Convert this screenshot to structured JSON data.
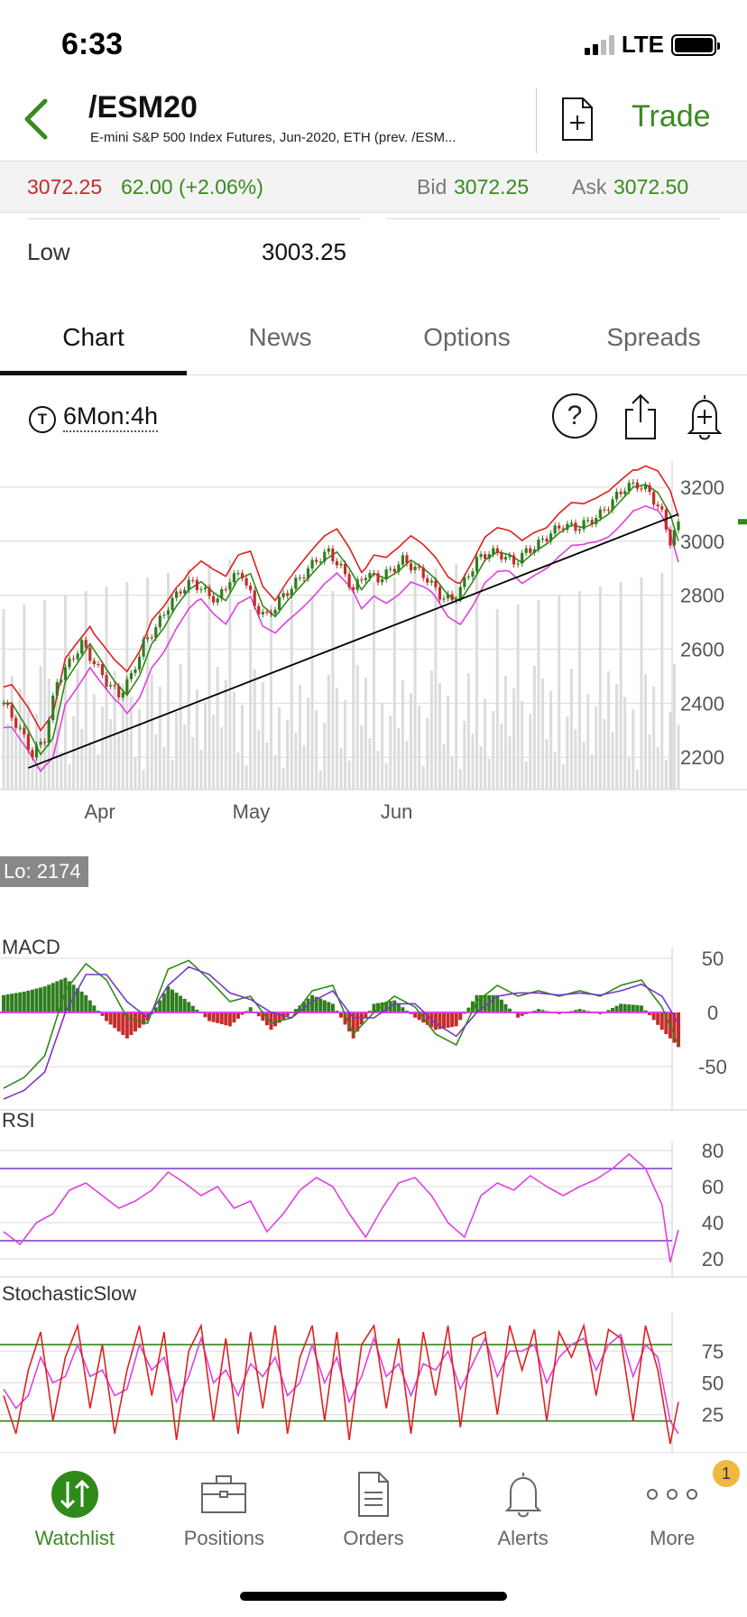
{
  "status": {
    "time": "6:33",
    "network": "LTE"
  },
  "header": {
    "symbol": "/ESM20",
    "description": "E-mini S&P 500 Index Futures, Jun-2020, ETH (prev. /ESM...",
    "trade_label": "Trade"
  },
  "quote": {
    "last": "3072.25",
    "change": "62.00 (+2.06%)",
    "bid_label": "Bid",
    "bid": "3072.25",
    "ask_label": "Ask",
    "ask": "3072.50"
  },
  "stats": {
    "low_label": "Low",
    "low_value": "3003.25"
  },
  "tabs": [
    {
      "label": "Chart",
      "active": true
    },
    {
      "label": "News",
      "active": false
    },
    {
      "label": "Options",
      "active": false
    },
    {
      "label": "Spreads",
      "active": false
    }
  ],
  "chart_toolbar": {
    "clock_glyph": "T",
    "period": "6Mon:4h",
    "help_glyph": "?"
  },
  "chart_data": [
    {
      "type": "candlestick",
      "x_tick_labels": [
        "Apr",
        "May",
        "Jun"
      ],
      "y_tick_labels": [
        "3200",
        "3000",
        "2800",
        "2600",
        "2400",
        "2200"
      ],
      "ylim": [
        2080,
        3300
      ],
      "low_annotation": "Lo: 2174",
      "overlays": [
        "upper band",
        "middle band",
        "lower band",
        "trendline",
        "volume"
      ],
      "colors": {
        "up": "#2f7d1e",
        "down": "#c62b2b",
        "upper": "#e02020",
        "middle": "#2f8a1a",
        "lower": "#e040e0",
        "trend": "#000000",
        "volume": "#dcdcdc"
      },
      "close_path": [
        [
          0,
          2400
        ],
        [
          4,
          2300
        ],
        [
          7,
          2210
        ],
        [
          10,
          2270
        ],
        [
          13,
          2480
        ],
        [
          16,
          2550
        ],
        [
          19,
          2620
        ],
        [
          22,
          2550
        ],
        [
          25,
          2480
        ],
        [
          28,
          2430
        ],
        [
          31,
          2500
        ],
        [
          34,
          2620
        ],
        [
          37,
          2680
        ],
        [
          40,
          2760
        ],
        [
          43,
          2820
        ],
        [
          46,
          2850
        ],
        [
          49,
          2810
        ],
        [
          52,
          2780
        ],
        [
          55,
          2860
        ],
        [
          58,
          2880
        ],
        [
          61,
          2760
        ],
        [
          64,
          2720
        ],
        [
          67,
          2780
        ],
        [
          70,
          2830
        ],
        [
          73,
          2880
        ],
        [
          76,
          2930
        ],
        [
          79,
          2960
        ],
        [
          82,
          2900
        ],
        [
          85,
          2820
        ],
        [
          88,
          2880
        ],
        [
          91,
          2860
        ],
        [
          94,
          2890
        ],
        [
          97,
          2930
        ],
        [
          100,
          2900
        ],
        [
          103,
          2860
        ],
        [
          106,
          2800
        ],
        [
          109,
          2780
        ],
        [
          112,
          2850
        ],
        [
          115,
          2930
        ],
        [
          118,
          2960
        ],
        [
          121,
          2950
        ],
        [
          124,
          2920
        ],
        [
          127,
          2960
        ],
        [
          130,
          2990
        ],
        [
          133,
          3030
        ],
        [
          136,
          3060
        ],
        [
          139,
          3050
        ],
        [
          142,
          3070
        ],
        [
          145,
          3100
        ],
        [
          148,
          3150
        ],
        [
          151,
          3200
        ],
        [
          154,
          3210
        ],
        [
          157,
          3180
        ],
        [
          160,
          3100
        ],
        [
          162,
          3000
        ],
        [
          164,
          3060
        ]
      ]
    },
    {
      "type": "line",
      "title": "MACD",
      "y_tick_labels": [
        "50",
        "0",
        "-50"
      ],
      "ylim": [
        -90,
        60
      ],
      "colors": {
        "macd": "#2f8a1a",
        "signal": "#7a36c8",
        "hist_up": "#2f7d1e",
        "hist_down": "#c62b2b",
        "zero": "#e040e0"
      },
      "macd": [
        [
          0,
          -70
        ],
        [
          5,
          -60
        ],
        [
          10,
          -40
        ],
        [
          15,
          20
        ],
        [
          20,
          45
        ],
        [
          25,
          30
        ],
        [
          30,
          -5
        ],
        [
          35,
          -10
        ],
        [
          40,
          40
        ],
        [
          45,
          48
        ],
        [
          50,
          30
        ],
        [
          55,
          10
        ],
        [
          60,
          15
        ],
        [
          65,
          -10
        ],
        [
          70,
          -5
        ],
        [
          75,
          20
        ],
        [
          80,
          25
        ],
        [
          85,
          -20
        ],
        [
          90,
          0
        ],
        [
          95,
          15
        ],
        [
          100,
          5
        ],
        [
          105,
          -20
        ],
        [
          110,
          -30
        ],
        [
          115,
          10
        ],
        [
          120,
          25
        ],
        [
          125,
          15
        ],
        [
          130,
          20
        ],
        [
          135,
          15
        ],
        [
          140,
          20
        ],
        [
          145,
          15
        ],
        [
          150,
          25
        ],
        [
          155,
          30
        ],
        [
          160,
          5
        ],
        [
          164,
          -30
        ]
      ],
      "signal": [
        [
          0,
          -80
        ],
        [
          5,
          -72
        ],
        [
          10,
          -55
        ],
        [
          15,
          0
        ],
        [
          20,
          35
        ],
        [
          25,
          35
        ],
        [
          30,
          10
        ],
        [
          35,
          -5
        ],
        [
          40,
          25
        ],
        [
          45,
          42
        ],
        [
          50,
          35
        ],
        [
          55,
          18
        ],
        [
          60,
          12
        ],
        [
          65,
          0
        ],
        [
          70,
          -5
        ],
        [
          75,
          10
        ],
        [
          80,
          20
        ],
        [
          85,
          -5
        ],
        [
          90,
          -5
        ],
        [
          95,
          8
        ],
        [
          100,
          8
        ],
        [
          105,
          -10
        ],
        [
          110,
          -22
        ],
        [
          115,
          0
        ],
        [
          120,
          15
        ],
        [
          125,
          18
        ],
        [
          130,
          18
        ],
        [
          135,
          16
        ],
        [
          140,
          18
        ],
        [
          145,
          16
        ],
        [
          150,
          20
        ],
        [
          155,
          26
        ],
        [
          160,
          15
        ],
        [
          164,
          -10
        ]
      ]
    },
    {
      "type": "line",
      "title": "RSI",
      "y_tick_labels": [
        "80",
        "60",
        "40",
        "20"
      ],
      "ylim": [
        10,
        85
      ],
      "levels": [
        70,
        30
      ],
      "colors": {
        "rsi": "#e040e0",
        "levels": "#7a36c8"
      },
      "rsi": [
        [
          0,
          35
        ],
        [
          4,
          28
        ],
        [
          8,
          40
        ],
        [
          12,
          45
        ],
        [
          16,
          58
        ],
        [
          20,
          62
        ],
        [
          24,
          55
        ],
        [
          28,
          48
        ],
        [
          32,
          52
        ],
        [
          36,
          58
        ],
        [
          40,
          68
        ],
        [
          44,
          62
        ],
        [
          48,
          55
        ],
        [
          52,
          60
        ],
        [
          56,
          48
        ],
        [
          60,
          52
        ],
        [
          64,
          35
        ],
        [
          68,
          45
        ],
        [
          72,
          58
        ],
        [
          76,
          65
        ],
        [
          80,
          60
        ],
        [
          84,
          45
        ],
        [
          88,
          32
        ],
        [
          92,
          48
        ],
        [
          96,
          62
        ],
        [
          100,
          65
        ],
        [
          104,
          55
        ],
        [
          108,
          40
        ],
        [
          112,
          32
        ],
        [
          116,
          55
        ],
        [
          120,
          62
        ],
        [
          124,
          58
        ],
        [
          128,
          66
        ],
        [
          132,
          60
        ],
        [
          136,
          55
        ],
        [
          140,
          60
        ],
        [
          144,
          64
        ],
        [
          148,
          70
        ],
        [
          152,
          78
        ],
        [
          156,
          70
        ],
        [
          160,
          50
        ],
        [
          162,
          18
        ],
        [
          164,
          36
        ]
      ]
    },
    {
      "type": "line",
      "title": "StochasticSlow",
      "y_tick_labels": [
        "75",
        "50",
        "25"
      ],
      "ylim": [
        -5,
        105
      ],
      "levels": [
        80,
        20
      ],
      "colors": {
        "k": "#e02020",
        "d": "#e040e0",
        "levels": "#2f8a1a"
      },
      "k": [
        [
          0,
          40
        ],
        [
          3,
          10
        ],
        [
          6,
          60
        ],
        [
          9,
          90
        ],
        [
          12,
          20
        ],
        [
          15,
          70
        ],
        [
          18,
          95
        ],
        [
          21,
          30
        ],
        [
          24,
          80
        ],
        [
          27,
          10
        ],
        [
          30,
          60
        ],
        [
          33,
          95
        ],
        [
          36,
          40
        ],
        [
          39,
          90
        ],
        [
          42,
          5
        ],
        [
          45,
          75
        ],
        [
          48,
          95
        ],
        [
          51,
          20
        ],
        [
          54,
          85
        ],
        [
          57,
          10
        ],
        [
          60,
          90
        ],
        [
          63,
          30
        ],
        [
          66,
          95
        ],
        [
          69,
          10
        ],
        [
          72,
          70
        ],
        [
          75,
          95
        ],
        [
          78,
          20
        ],
        [
          81,
          90
        ],
        [
          84,
          5
        ],
        [
          87,
          80
        ],
        [
          90,
          95
        ],
        [
          93,
          30
        ],
        [
          96,
          85
        ],
        [
          99,
          10
        ],
        [
          102,
          90
        ],
        [
          105,
          40
        ],
        [
          108,
          95
        ],
        [
          111,
          15
        ],
        [
          114,
          85
        ],
        [
          117,
          90
        ],
        [
          120,
          25
        ],
        [
          123,
          95
        ],
        [
          126,
          60
        ],
        [
          129,
          92
        ],
        [
          132,
          20
        ],
        [
          135,
          90
        ],
        [
          138,
          70
        ],
        [
          141,
          95
        ],
        [
          144,
          40
        ],
        [
          147,
          92
        ],
        [
          150,
          85
        ],
        [
          153,
          20
        ],
        [
          156,
          95
        ],
        [
          159,
          60
        ],
        [
          162,
          2
        ],
        [
          164,
          35
        ]
      ],
      "d": [
        [
          0,
          45
        ],
        [
          3,
          30
        ],
        [
          6,
          40
        ],
        [
          9,
          70
        ],
        [
          12,
          50
        ],
        [
          15,
          55
        ],
        [
          18,
          80
        ],
        [
          21,
          55
        ],
        [
          24,
          60
        ],
        [
          27,
          40
        ],
        [
          30,
          45
        ],
        [
          33,
          80
        ],
        [
          36,
          60
        ],
        [
          39,
          70
        ],
        [
          42,
          35
        ],
        [
          45,
          55
        ],
        [
          48,
          85
        ],
        [
          51,
          50
        ],
        [
          54,
          60
        ],
        [
          57,
          40
        ],
        [
          60,
          65
        ],
        [
          63,
          55
        ],
        [
          66,
          70
        ],
        [
          69,
          40
        ],
        [
          72,
          50
        ],
        [
          75,
          80
        ],
        [
          78,
          50
        ],
        [
          81,
          70
        ],
        [
          84,
          35
        ],
        [
          87,
          55
        ],
        [
          90,
          85
        ],
        [
          93,
          55
        ],
        [
          96,
          65
        ],
        [
          99,
          40
        ],
        [
          102,
          65
        ],
        [
          105,
          60
        ],
        [
          108,
          75
        ],
        [
          111,
          45
        ],
        [
          114,
          65
        ],
        [
          117,
          85
        ],
        [
          120,
          55
        ],
        [
          123,
          75
        ],
        [
          126,
          75
        ],
        [
          129,
          80
        ],
        [
          132,
          50
        ],
        [
          135,
          70
        ],
        [
          138,
          80
        ],
        [
          141,
          85
        ],
        [
          144,
          60
        ],
        [
          147,
          80
        ],
        [
          150,
          88
        ],
        [
          153,
          55
        ],
        [
          156,
          80
        ],
        [
          159,
          70
        ],
        [
          162,
          20
        ],
        [
          164,
          10
        ]
      ]
    }
  ],
  "nav": [
    {
      "label": "Watchlist",
      "active": true
    },
    {
      "label": "Positions",
      "active": false
    },
    {
      "label": "Orders",
      "active": false
    },
    {
      "label": "Alerts",
      "active": false
    },
    {
      "label": "More",
      "active": false,
      "badge": "1"
    }
  ]
}
